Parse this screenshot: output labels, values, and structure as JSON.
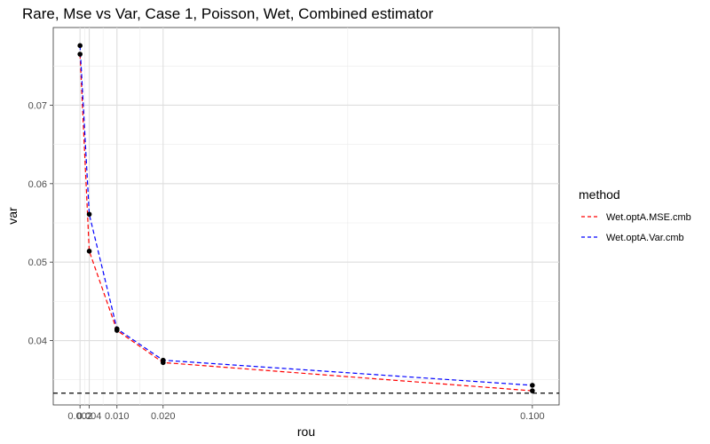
{
  "chart_data": {
    "type": "line",
    "title": "Rare, Mse vs Var, Case 1, Poisson, Wet, Combined estimator",
    "xlabel": "rou",
    "ylabel": "var",
    "xlim": [
      -0.0038,
      0.1058
    ],
    "ylim": [
      0.0318,
      0.0799
    ],
    "x_ticks": [
      0.002,
      0.004,
      0.01,
      0.02,
      0.1
    ],
    "x_tick_labels": [
      "0.002",
      "0.004",
      "0.010",
      "0.020",
      "0.100"
    ],
    "y_ticks": [
      0.04,
      0.05,
      0.06,
      0.07
    ],
    "y_tick_labels": [
      "0.04",
      "0.05",
      "0.06",
      "0.07"
    ],
    "grid": true,
    "legend_title": "method",
    "legend_position": "right",
    "reference_line": {
      "y": 0.0333,
      "style": "dashed",
      "color": "#000000"
    },
    "series": [
      {
        "name": "Wet.optA.MSE.cmb",
        "color": "#ff0000",
        "x": [
          0.002,
          0.004,
          0.01,
          0.02,
          0.1
        ],
        "y": [
          0.0765,
          0.0514,
          0.0413,
          0.0372,
          0.0336
        ]
      },
      {
        "name": "Wet.optA.Var.cmb",
        "color": "#0000ff",
        "x": [
          0.002,
          0.004,
          0.01,
          0.02,
          0.1
        ],
        "y": [
          0.0776,
          0.0561,
          0.0415,
          0.0375,
          0.0343
        ]
      }
    ]
  }
}
